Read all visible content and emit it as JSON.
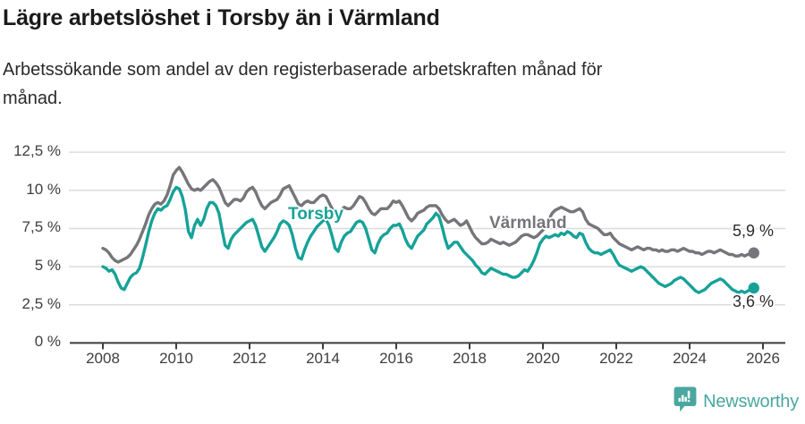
{
  "header": {
    "title": "Lägre arbetslöshet i Torsby än i Värmland",
    "subtitle_lines": [
      "Arbetssökande som andel av den registerbaserade arbetskraften månad för",
      "månad."
    ]
  },
  "footer": {
    "brand": "Newsworthy",
    "brand_color": "#4aa7a0",
    "logo_icon": "newsworthy-speech-bubble-bar-chart-icon"
  },
  "chart_data": {
    "type": "line",
    "title": "Lägre arbetslöshet i Torsby än i Värmland",
    "xlabel": "",
    "ylabel": "",
    "frequency": "monthly",
    "start_year": 2008,
    "end_point": "2025-10",
    "ylim": [
      0,
      13.2
    ],
    "grid": "horizontal",
    "grid_color": "#dcdcdc",
    "axis_color": "#3c3c3c",
    "y_ticks": [
      {
        "value": 0,
        "label": "0 %"
      },
      {
        "value": 2.5,
        "label": "2,5 %"
      },
      {
        "value": 5,
        "label": "5 %"
      },
      {
        "value": 7.5,
        "label": "7,5 %"
      },
      {
        "value": 10,
        "label": "10 %"
      },
      {
        "value": 12.5,
        "label": "12,5 %"
      }
    ],
    "x_ticks": [
      {
        "year": 2008,
        "label": "2008"
      },
      {
        "year": 2010,
        "label": "2010"
      },
      {
        "year": 2012,
        "label": "2012"
      },
      {
        "year": 2014,
        "label": "2014"
      },
      {
        "year": 2016,
        "label": "2016"
      },
      {
        "year": 2018,
        "label": "2018"
      },
      {
        "year": 2020,
        "label": "2020"
      },
      {
        "year": 2022,
        "label": "2022"
      },
      {
        "year": 2024,
        "label": "2024"
      },
      {
        "year": 2026,
        "label": "2026"
      }
    ],
    "series": [
      {
        "name": "Värmland",
        "color": "#75757a",
        "end_label": "5,9 %",
        "values_by_year": [
          [
            6.2,
            6.1,
            5.9,
            5.6,
            5.4,
            5.3,
            5.4,
            5.5,
            5.6,
            5.8,
            6.1,
            6.4
          ],
          [
            6.8,
            7.3,
            7.8,
            8.4,
            8.8,
            9.1,
            9.2,
            9.1,
            9.3,
            9.7,
            10.3,
            11.0
          ],
          [
            11.3,
            11.5,
            11.2,
            10.8,
            10.4,
            10.1,
            10.0,
            10.1,
            10.0,
            10.2,
            10.4,
            10.6
          ],
          [
            10.7,
            10.5,
            10.2,
            9.7,
            9.2,
            9.0,
            9.2,
            9.4,
            9.4,
            9.3,
            9.5,
            9.9
          ],
          [
            10.1,
            10.2,
            9.9,
            9.4,
            9.0,
            8.8,
            9.0,
            9.2,
            9.3,
            9.4,
            9.7,
            10.1
          ],
          [
            10.2,
            10.3,
            9.9,
            9.5,
            9.1,
            9.0,
            9.2,
            9.3,
            9.2,
            9.2,
            9.4,
            9.6
          ],
          [
            9.7,
            9.6,
            9.2,
            8.8,
            8.6,
            8.5,
            8.7,
            8.9,
            8.8,
            8.8,
            9.0,
            9.3
          ],
          [
            9.6,
            9.5,
            9.2,
            8.8,
            8.5,
            8.4,
            8.6,
            8.8,
            8.8,
            8.8,
            9.0,
            9.3
          ],
          [
            9.2,
            9.3,
            9.0,
            8.6,
            8.2,
            8.0,
            8.2,
            8.5,
            8.6,
            8.7,
            8.9,
            9.0
          ],
          [
            9.0,
            9.0,
            8.8,
            8.4,
            8.1,
            7.9,
            8.0,
            8.1,
            7.9,
            7.7,
            7.8,
            8.0
          ],
          [
            7.6,
            7.2,
            6.9,
            6.7,
            6.5,
            6.5,
            6.6,
            6.8,
            6.7,
            6.6,
            6.5,
            6.6
          ],
          [
            6.5,
            6.4,
            6.5,
            6.6,
            6.8,
            7.0,
            7.1,
            7.1,
            7.0,
            6.9,
            7.0,
            7.2
          ],
          [
            7.4,
            7.6,
            8.1,
            8.5,
            8.7,
            8.8,
            8.9,
            8.8,
            8.7,
            8.6,
            8.6,
            8.7
          ],
          [
            8.8,
            8.6,
            8.1,
            7.8,
            7.7,
            7.6,
            7.5,
            7.3,
            7.1,
            7.1,
            7.2,
            6.9
          ],
          [
            6.7,
            6.5,
            6.4,
            6.3,
            6.2,
            6.1,
            6.2,
            6.3,
            6.2,
            6.1,
            6.2,
            6.2
          ],
          [
            6.1,
            6.1,
            6.0,
            6.1,
            6.0,
            6.0,
            6.1,
            6.1,
            6.0,
            6.1,
            6.2,
            6.1
          ],
          [
            6.0,
            6.0,
            5.9,
            5.9,
            5.8,
            5.9,
            6.0,
            6.0,
            5.9,
            6.0,
            6.1,
            6.0
          ],
          [
            5.9,
            5.8,
            5.8,
            5.7,
            5.7,
            5.8,
            5.7,
            5.8,
            5.8,
            5.9
          ]
        ]
      },
      {
        "name": "Torsby",
        "color": "#16a298",
        "end_label": "3,6 %",
        "values_by_year": [
          [
            5.0,
            4.9,
            4.7,
            4.8,
            4.5,
            4.0,
            3.6,
            3.5,
            3.9,
            4.3,
            4.5,
            4.6
          ],
          [
            4.9,
            5.6,
            6.4,
            7.3,
            8.0,
            8.5,
            8.8,
            8.7,
            8.9,
            9.0,
            9.4,
            9.9
          ],
          [
            10.2,
            10.1,
            9.6,
            8.7,
            7.3,
            6.9,
            7.7,
            8.1,
            7.7,
            8.1,
            8.8,
            9.2
          ],
          [
            9.2,
            9.0,
            8.5,
            7.4,
            6.4,
            6.2,
            6.8,
            7.1,
            7.3,
            7.5,
            7.7,
            7.9
          ],
          [
            8.0,
            8.1,
            7.7,
            7.0,
            6.3,
            6.0,
            6.3,
            6.6,
            6.9,
            7.3,
            7.8,
            8.0
          ],
          [
            7.9,
            7.7,
            7.1,
            6.2,
            5.6,
            5.5,
            6.1,
            6.6,
            7.0,
            7.3,
            7.6,
            7.8
          ],
          [
            8.0,
            8.1,
            7.7,
            7.0,
            6.2,
            6.0,
            6.6,
            7.0,
            7.2,
            7.3,
            7.6,
            7.9
          ],
          [
            8.0,
            7.9,
            7.5,
            6.8,
            6.1,
            5.9,
            6.5,
            6.9,
            7.1,
            7.2,
            7.5,
            7.7
          ],
          [
            7.7,
            7.8,
            7.4,
            6.8,
            6.4,
            6.2,
            6.6,
            7.0,
            7.2,
            7.4,
            7.8,
            8.0
          ],
          [
            8.2,
            8.5,
            8.3,
            7.6,
            6.8,
            6.2,
            6.4,
            6.6,
            6.6,
            6.3,
            6.0,
            5.8
          ],
          [
            5.6,
            5.4,
            5.1,
            4.9,
            4.6,
            4.5,
            4.7,
            4.9,
            4.8,
            4.7,
            4.6,
            4.5
          ],
          [
            4.5,
            4.4,
            4.3,
            4.3,
            4.4,
            4.6,
            4.8,
            4.7,
            5.0,
            5.4,
            5.9,
            6.5
          ],
          [
            6.8,
            7.0,
            6.9,
            7.0,
            7.1,
            7.0,
            7.2,
            7.1,
            7.3,
            7.2,
            7.0,
            6.9
          ],
          [
            7.2,
            7.1,
            6.6,
            6.2,
            6.0,
            5.9,
            5.9,
            5.8,
            5.9,
            6.0,
            6.1,
            5.8
          ],
          [
            5.4,
            5.1,
            5.0,
            4.9,
            4.8,
            4.7,
            4.8,
            4.9,
            5.0,
            4.9,
            4.7,
            4.5
          ],
          [
            4.3,
            4.1,
            3.9,
            3.8,
            3.7,
            3.8,
            3.9,
            4.1,
            4.2,
            4.3,
            4.2,
            4.0
          ],
          [
            3.8,
            3.6,
            3.4,
            3.3,
            3.4,
            3.5,
            3.7,
            3.9,
            4.0,
            4.1,
            4.2,
            4.1
          ],
          [
            3.9,
            3.7,
            3.5,
            3.4,
            3.3,
            3.4,
            3.3,
            3.4,
            3.5,
            3.6
          ]
        ]
      }
    ]
  }
}
